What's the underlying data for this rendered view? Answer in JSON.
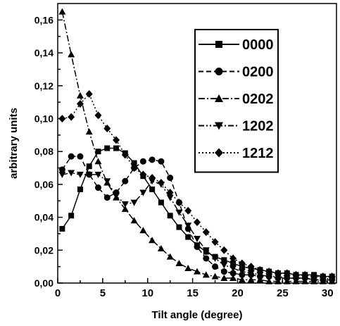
{
  "chart_data": {
    "type": "line",
    "title": "",
    "xlabel": "Tilt angle (degree)",
    "ylabel": "arbitrary units",
    "xlim": [
      0,
      31
    ],
    "ylim": [
      0,
      0.17
    ],
    "x_ticks": [
      0,
      5,
      10,
      15,
      20,
      25,
      30
    ],
    "y_ticks": [
      0.0,
      0.02,
      0.04,
      0.06,
      0.08,
      0.1,
      0.12,
      0.14,
      0.16
    ],
    "x_tick_labels": [
      "0",
      "5",
      "10",
      "15",
      "20",
      "25",
      "30"
    ],
    "y_tick_labels": [
      "0,00",
      "0,02",
      "0,04",
      "0,06",
      "0,08",
      "0,10",
      "0,12",
      "0,14",
      "0,16"
    ],
    "grid": false,
    "legend_position": "top-right",
    "x": [
      0.5,
      1.5,
      2.5,
      3.5,
      4.5,
      5.5,
      6.5,
      7.5,
      8.5,
      9.5,
      10.5,
      11.5,
      12.5,
      13.5,
      14.5,
      15.5,
      16.5,
      17.5,
      18.5,
      19.5,
      20.5,
      21.5,
      22.5,
      23.5,
      24.5,
      25.5,
      26.5,
      27.5,
      28.5,
      29.5,
      30.5
    ],
    "series": [
      {
        "name": "0000",
        "line": "solid",
        "marker": "square",
        "values": [
          0.033,
          0.041,
          0.057,
          0.071,
          0.08,
          0.082,
          0.082,
          0.079,
          0.073,
          0.065,
          0.057,
          0.049,
          0.041,
          0.034,
          0.028,
          0.023,
          0.019,
          0.016,
          0.014,
          0.012,
          0.01,
          0.009,
          0.008,
          0.007,
          0.006,
          0.006,
          0.005,
          0.005,
          0.005,
          0.004,
          0.004
        ]
      },
      {
        "name": "0200",
        "line": "dashed",
        "marker": "circle",
        "values": [
          0.069,
          0.077,
          0.077,
          0.066,
          0.058,
          0.052,
          0.055,
          0.062,
          0.07,
          0.074,
          0.075,
          0.074,
          0.064,
          0.049,
          0.033,
          0.022,
          0.015,
          0.01,
          0.007,
          0.006,
          0.005,
          0.005,
          0.004,
          0.004,
          0.003,
          0.003,
          0.003,
          0.003,
          0.002,
          0.002,
          0.002
        ]
      },
      {
        "name": "0202",
        "line": "dashdot",
        "marker": "triangle-up",
        "values": [
          0.165,
          0.139,
          0.114,
          0.092,
          0.074,
          0.061,
          0.052,
          0.045,
          0.038,
          0.032,
          0.026,
          0.021,
          0.016,
          0.012,
          0.009,
          0.007,
          0.005,
          0.004,
          0.003,
          0.003,
          0.002,
          0.002,
          0.002,
          0.001,
          0.001,
          0.001,
          0.001,
          0.001,
          0.001,
          0.001,
          0.001
        ]
      },
      {
        "name": "1202",
        "line": "dashdotdot",
        "marker": "triangle-down",
        "values": [
          0.066,
          0.067,
          0.066,
          0.066,
          0.066,
          0.062,
          0.053,
          0.048,
          0.049,
          0.055,
          0.062,
          0.06,
          0.052,
          0.043,
          0.035,
          0.027,
          0.02,
          0.015,
          0.011,
          0.009,
          0.007,
          0.006,
          0.005,
          0.004,
          0.004,
          0.003,
          0.003,
          0.003,
          0.002,
          0.002,
          0.002
        ]
      },
      {
        "name": "1212",
        "line": "dotted",
        "marker": "diamond",
        "values": [
          0.1,
          0.101,
          0.109,
          0.115,
          0.102,
          0.094,
          0.087,
          0.078,
          0.07,
          0.066,
          0.064,
          0.061,
          0.055,
          0.049,
          0.044,
          0.037,
          0.031,
          0.025,
          0.02,
          0.015,
          0.012,
          0.01,
          0.008,
          0.007,
          0.006,
          0.006,
          0.005,
          0.005,
          0.004,
          0.004,
          0.004
        ]
      }
    ]
  }
}
